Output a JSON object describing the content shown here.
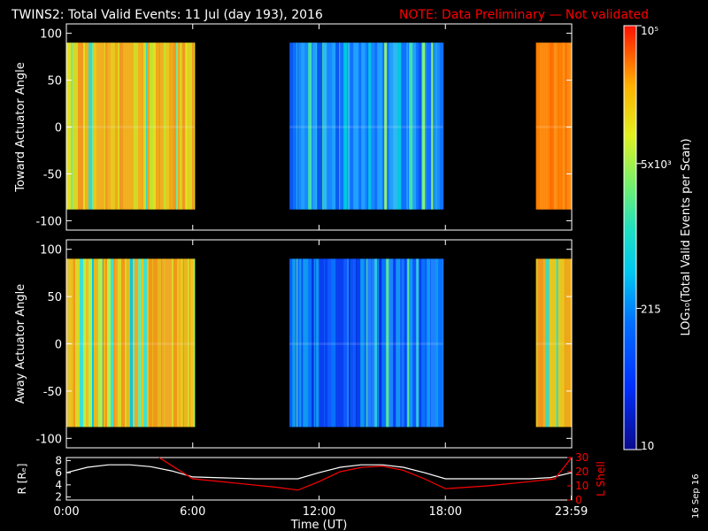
{
  "title": "TWINS2: Total Valid Events: 11 Jul (day 193), 2016",
  "note": "NOTE: Data Preliminary — Not validated",
  "date_stamp": "16 Sep 16",
  "colors": {
    "note": "#ff0000",
    "l_shell": "#ff0000",
    "r_line": "#ffffff",
    "background": "#000000"
  },
  "chart_data": [
    {
      "type": "heatmap",
      "panel": "toward",
      "ylabel": "Toward Actuator Angle",
      "ylim": [
        -110,
        110
      ],
      "yticks": [
        100,
        50,
        0,
        -50,
        -100
      ],
      "data_extent_y": [
        -88,
        90
      ],
      "x_range_hours": [
        0,
        24
      ],
      "data_segments_hours": [
        [
          0.0,
          6.1
        ],
        [
          10.6,
          17.9
        ],
        [
          22.3,
          23.99
        ]
      ],
      "segment_scheme": [
        "yellow-orange",
        "blue-green",
        "orange"
      ],
      "color_scale": "log"
    },
    {
      "type": "heatmap",
      "panel": "away",
      "ylabel": "Away Actuator Angle",
      "ylim": [
        -110,
        110
      ],
      "yticks": [
        100,
        50,
        0,
        -50,
        -100
      ],
      "data_extent_y": [
        -88,
        90
      ],
      "x_range_hours": [
        0,
        24
      ],
      "data_segments_hours": [
        [
          0.0,
          6.1
        ],
        [
          10.6,
          17.9
        ],
        [
          22.3,
          23.99
        ]
      ],
      "segment_scheme": [
        "cyan-yellow",
        "blue",
        "yellow-orange"
      ],
      "color_scale": "log"
    },
    {
      "type": "line",
      "panel": "ephemeris",
      "xlabel": "Time (UT)",
      "ylabel_left": "R [Rₑ]",
      "ylabel_right": "L Shell",
      "x_ticks": [
        "0:00",
        "6:00",
        "12:00",
        "18:00",
        "23:59"
      ],
      "x_tick_hours": [
        0,
        6,
        12,
        18,
        23.98
      ],
      "ylim_left": [
        1.5,
        8.5
      ],
      "yticks_left": [
        "8",
        "6",
        "4",
        "2"
      ],
      "ylim_right": [
        0,
        30
      ],
      "yticks_right": [
        "30",
        "20",
        "10",
        "0"
      ],
      "series": [
        {
          "name": "R",
          "x": [
            0,
            1,
            2,
            3,
            4,
            5,
            6,
            7,
            8,
            9,
            10,
            11,
            12,
            13,
            14,
            15,
            16,
            17,
            18,
            19,
            20,
            21,
            22,
            23,
            23.99
          ],
          "y": [
            6.0,
            6.9,
            7.3,
            7.3,
            7.0,
            6.3,
            5.3,
            5.2,
            5.1,
            5.0,
            5.0,
            5.0,
            6.0,
            6.9,
            7.3,
            7.3,
            6.9,
            6.0,
            5.0,
            5.0,
            5.0,
            5.0,
            5.0,
            5.2,
            6.0
          ]
        },
        {
          "name": "L Shell",
          "x": [
            4.4,
            6.0,
            8.0,
            10.0,
            11.0,
            12.0,
            13.0,
            14.0,
            15.0,
            16.0,
            17.0,
            18.0,
            20.0,
            22.0,
            23.2,
            23.99
          ],
          "y": [
            30,
            15,
            12,
            9,
            7,
            13,
            20,
            23,
            24,
            21,
            15,
            8,
            10,
            13,
            15,
            30
          ]
        }
      ]
    }
  ],
  "colorbar": {
    "scale": "log",
    "range": [
      10,
      100000
    ],
    "label": "LOG₁₀(Total Valid Events per Scan)",
    "ticks": [
      {
        "label": "10",
        "value": 10
      },
      {
        "label": "215",
        "value": 215
      },
      {
        "label": "5x10³",
        "value": 5000
      },
      {
        "label": "10⁵",
        "value": 100000
      }
    ]
  }
}
